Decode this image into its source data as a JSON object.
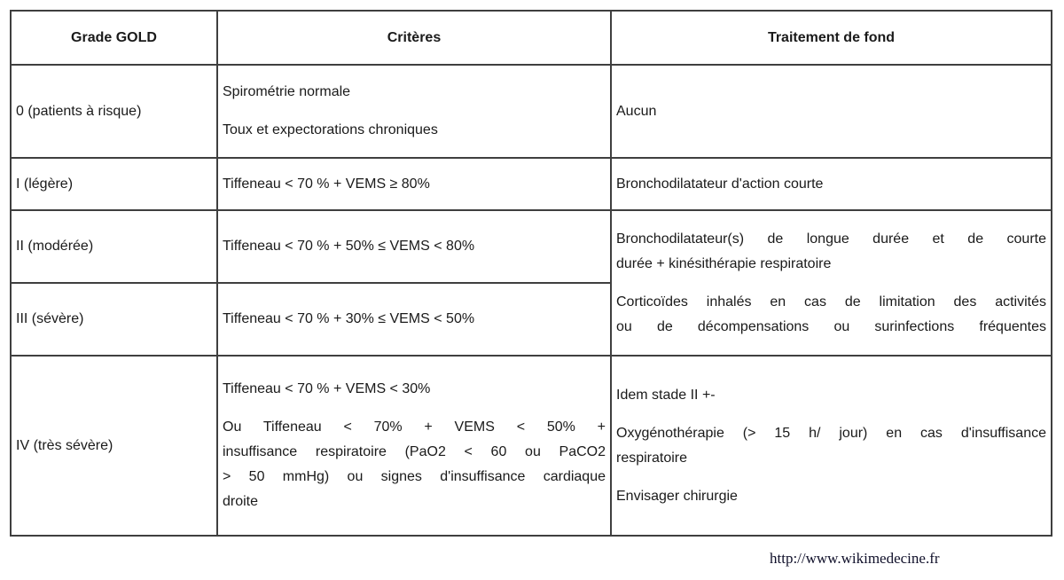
{
  "table": {
    "headers": {
      "grade": "Grade GOLD",
      "criteres": "Critères",
      "traitement": "Traitement de fond"
    },
    "rows": {
      "r0": {
        "grade": "0 (patients à risque)",
        "criteres": [
          [
            {
              "t": "Spirométrie normale",
              "j": false
            }
          ],
          [
            {
              "t": "Toux et expectorations chroniques",
              "j": false
            }
          ]
        ],
        "traitement": [
          [
            {
              "t": "Aucun",
              "j": false
            }
          ]
        ]
      },
      "r1": {
        "grade": "I (légère)",
        "criteres": [
          [
            {
              "t": "Tiffeneau < 70 % + VEMS ≥ 80%",
              "j": false
            }
          ]
        ],
        "traitement": [
          [
            {
              "t": "Bronchodilatateur d'action courte",
              "j": false
            }
          ]
        ]
      },
      "r2": {
        "grade": "II (modérée)",
        "criteres": [
          [
            {
              "t": "Tiffeneau < 70 % + 50% ≤ VEMS < 80%",
              "j": false
            }
          ]
        ],
        "traitement_merged": [
          [
            {
              "t": "Bronchodilatateur(s) de longue durée et de courte",
              "j": true
            },
            {
              "t": "durée + kinésithérapie respiratoire",
              "j": false
            }
          ],
          [
            {
              "t": "Corticoïdes inhalés en cas de limitation des activités",
              "j": true
            },
            {
              "t": "ou de décompensations ou surinfections fréquentes",
              "j": true
            }
          ]
        ]
      },
      "r3": {
        "grade": "III (sévère)",
        "criteres": [
          [
            {
              "t": "Tiffeneau < 70 % + 30% ≤ VEMS < 50%",
              "j": false
            }
          ]
        ]
      },
      "r4": {
        "grade": "IV (très sévère)",
        "criteres": [
          [
            {
              "t": "Tiffeneau < 70 % + VEMS < 30%",
              "j": false
            }
          ],
          [
            {
              "t": "Ou Tiffeneau < 70% + VEMS < 50% +",
              "j": true
            },
            {
              "t": "insuffisance respiratoire (PaO2 < 60 ou PaCO2",
              "j": true
            },
            {
              "t": "> 50 mmHg) ou signes d'insuffisance cardiaque",
              "j": true
            },
            {
              "t": "droite",
              "j": false
            }
          ]
        ],
        "traitement": [
          [
            {
              "t": "Idem stade II +-",
              "j": false
            }
          ],
          [
            {
              "t": "Oxygénothérapie (> 15 h/ jour) en cas d'insuffisance",
              "j": true
            },
            {
              "t": "respiratoire",
              "j": false
            }
          ],
          [
            {
              "t": "Envisager chirurgie",
              "j": false
            }
          ]
        ]
      }
    }
  },
  "footer": {
    "url": "http://www.wikimedecine.fr"
  }
}
